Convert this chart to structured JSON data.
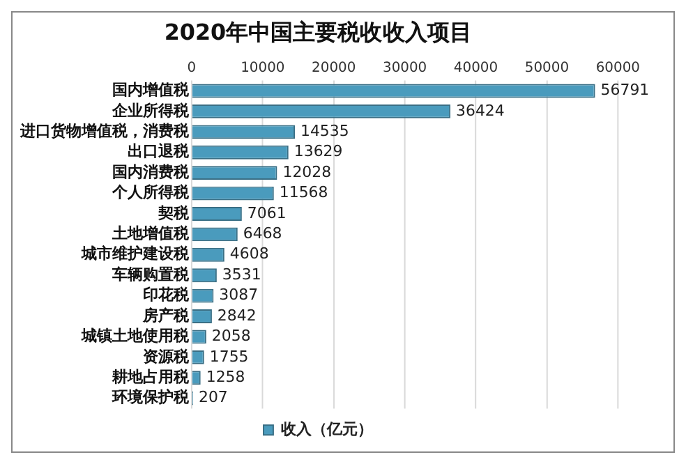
{
  "chart_data": {
    "type": "bar",
    "orientation": "horizontal",
    "title": "2020年中国主要税收收入项目",
    "categories": [
      "国内增值税",
      "企业所得税",
      "进口货物增值税，消费税",
      "出口退税",
      "国内消费税",
      "个人所得税",
      "契税",
      "土地增值税",
      "城市维护建设税",
      "车辆购置税",
      "印花税",
      "房产税",
      "城镇土地使用税",
      "资源税",
      "耕地占用税",
      "环境保护税"
    ],
    "series": [
      {
        "name": "收入（亿元）",
        "color": "#4a9bbd",
        "values": [
          56791,
          36424,
          14535,
          13629,
          12028,
          11568,
          7061,
          6468,
          4608,
          3531,
          3087,
          2842,
          2058,
          1755,
          1258,
          207
        ]
      }
    ],
    "xlim": [
      0,
      60000
    ],
    "xticks": [
      0,
      10000,
      20000,
      30000,
      40000,
      50000,
      60000
    ],
    "grid": "x",
    "legend": "bottom",
    "data_labels": true
  }
}
